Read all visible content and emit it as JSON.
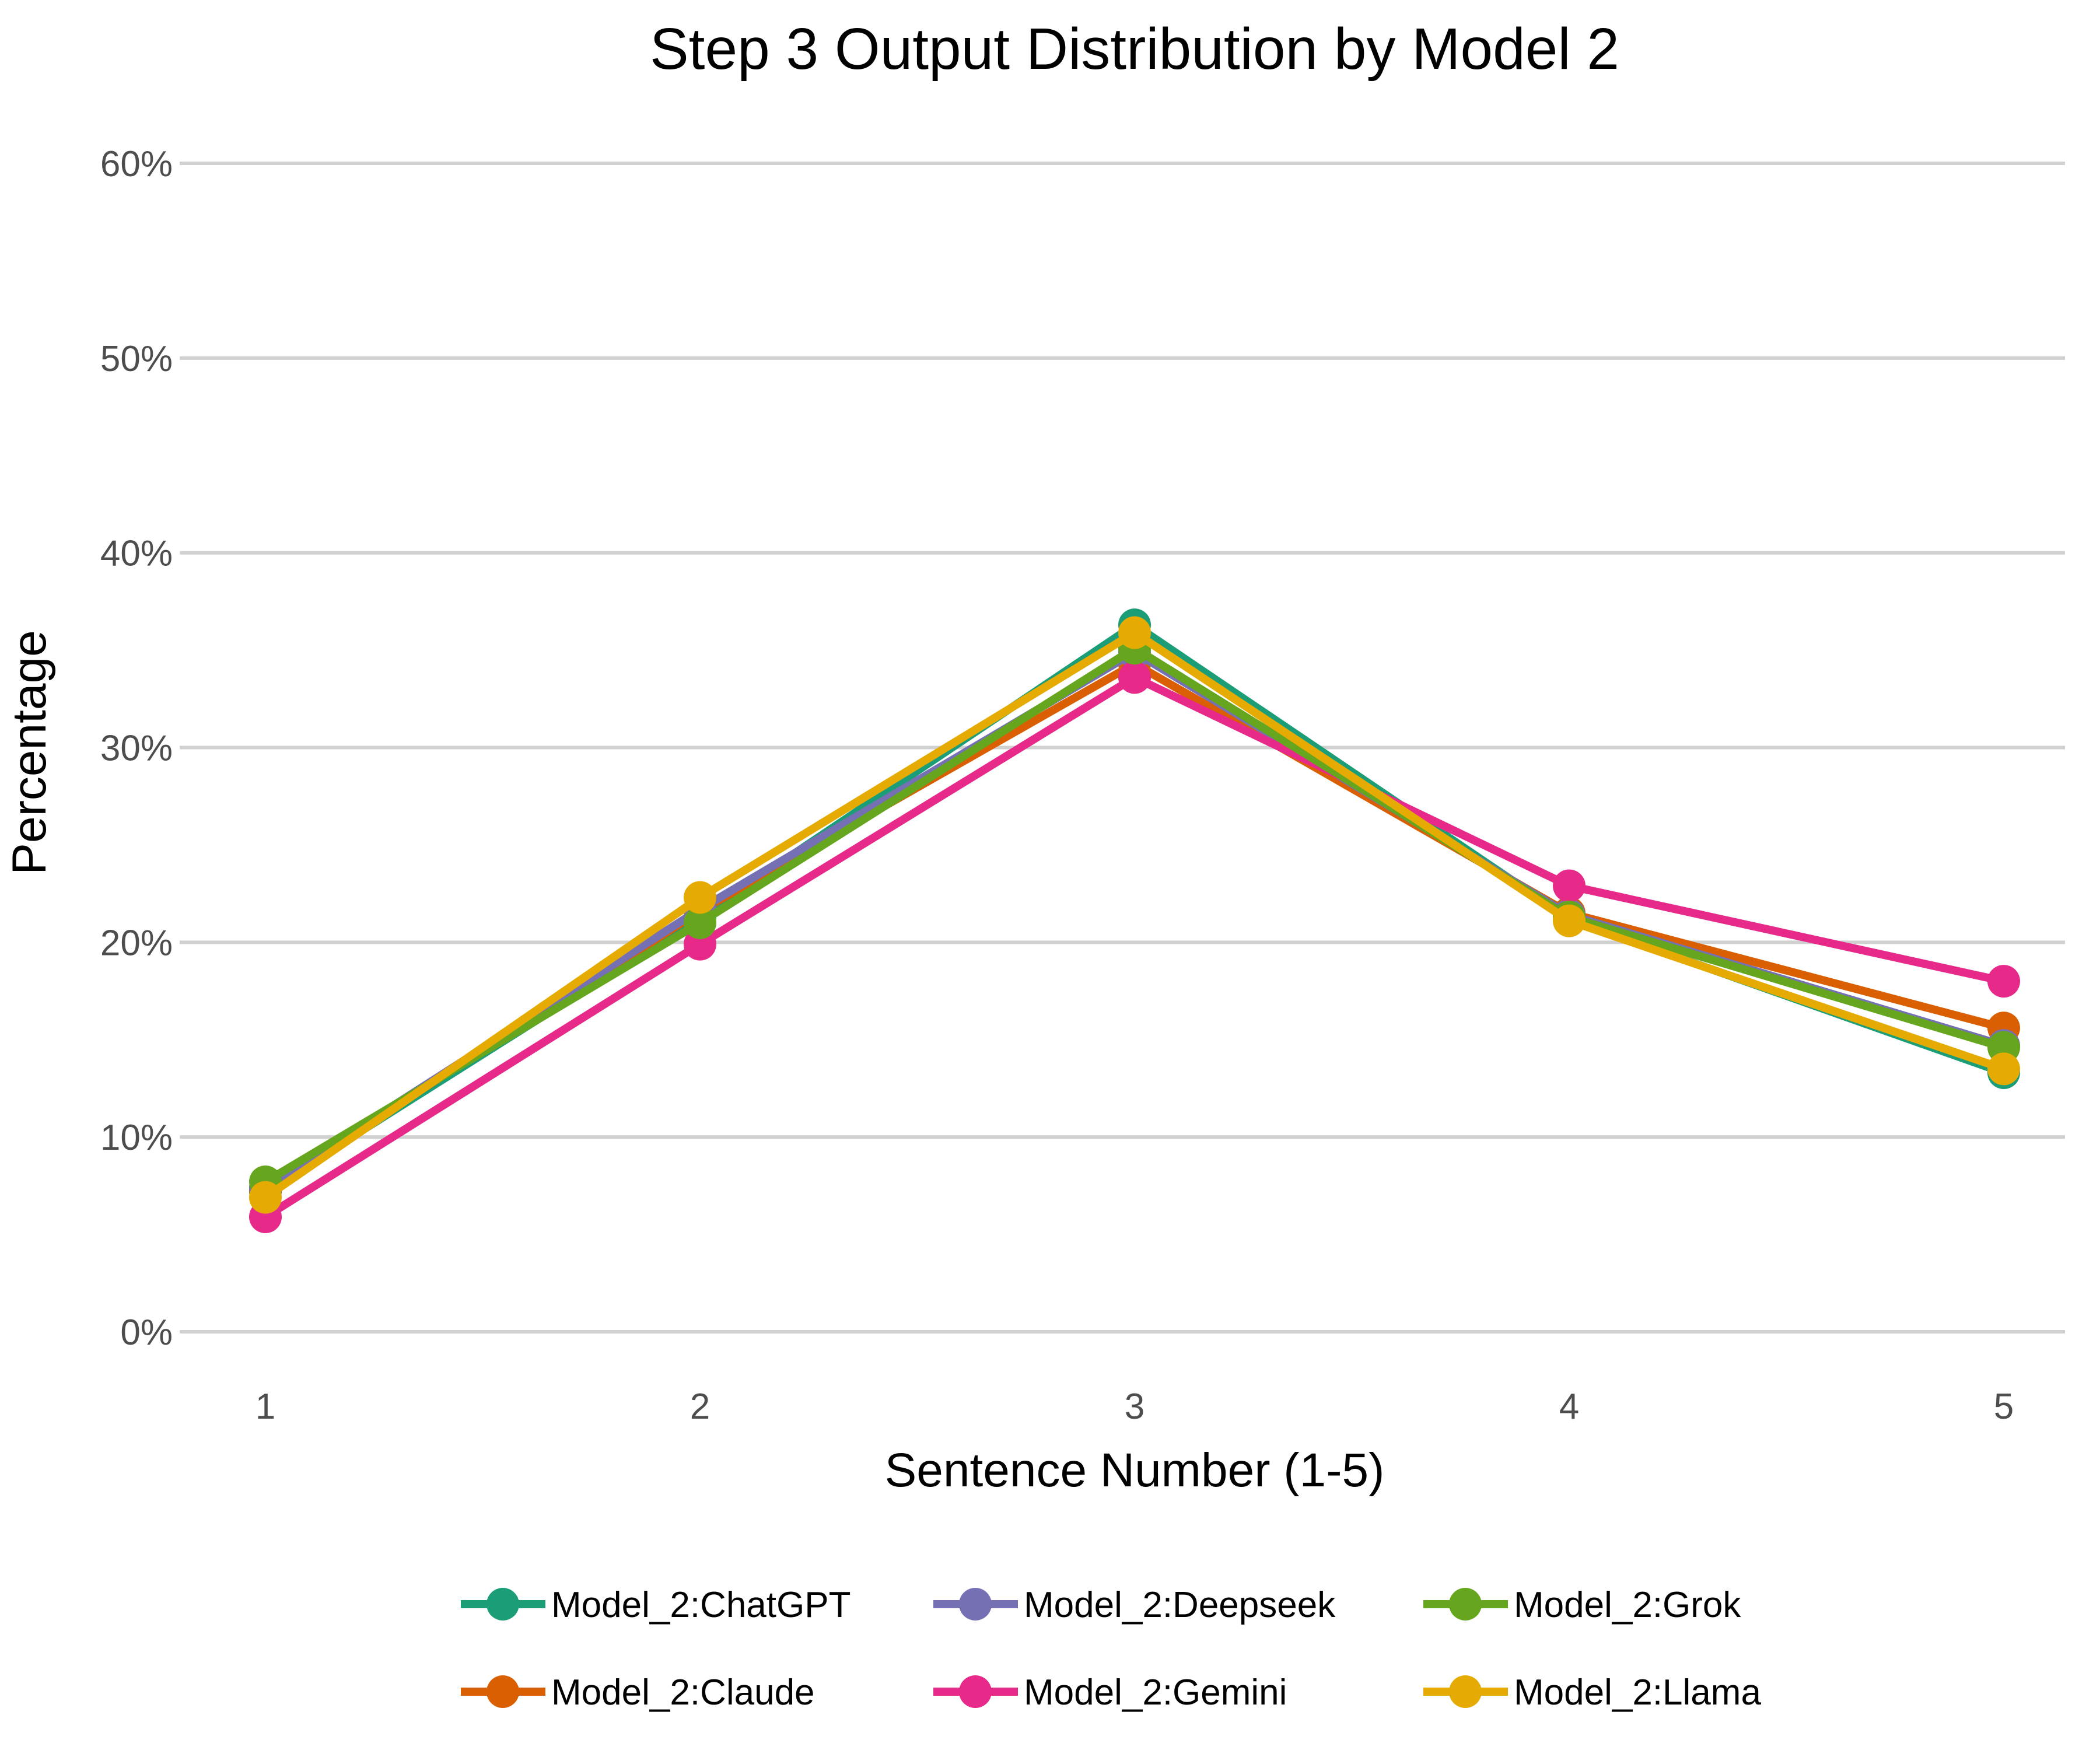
{
  "chart_data": {
    "type": "line",
    "title": "Step 3 Output Distribution by Model 2",
    "xlabel": "Sentence Number (1-5)",
    "ylabel": "Percentage",
    "x": [
      1,
      2,
      3,
      4,
      5
    ],
    "x_tick_labels": [
      "1",
      "2",
      "3",
      "4",
      "5"
    ],
    "ylim": [
      0,
      60
    ],
    "y_ticks": [
      0,
      10,
      20,
      30,
      40,
      50,
      60
    ],
    "y_tick_labels": [
      "0%",
      "10%",
      "20%",
      "30%",
      "40%",
      "50%",
      "60%"
    ],
    "grid": "horizontal",
    "legend_position": "bottom",
    "series": [
      {
        "name": "Model_2:ChatGPT",
        "color": "#1b9e77",
        "values": [
          7.2,
          21.3,
          36.3,
          21.2,
          13.3
        ]
      },
      {
        "name": "Model_2:Claude",
        "color": "#d95f02",
        "values": [
          7.3,
          21.6,
          34.3,
          21.5,
          15.6
        ]
      },
      {
        "name": "Model_2:Deepseek",
        "color": "#7570b3",
        "values": [
          7.4,
          21.7,
          34.9,
          21.4,
          14.7
        ]
      },
      {
        "name": "Model_2:Gemini",
        "color": "#e7298a",
        "values": [
          5.9,
          19.9,
          33.6,
          22.9,
          18.0
        ]
      },
      {
        "name": "Model_2:Grok",
        "color": "#66a61e",
        "values": [
          7.7,
          21.0,
          35.1,
          21.3,
          14.6
        ]
      },
      {
        "name": "Model_2:Llama",
        "color": "#e6ab02",
        "values": [
          6.9,
          22.3,
          35.9,
          21.1,
          13.5
        ]
      }
    ]
  }
}
